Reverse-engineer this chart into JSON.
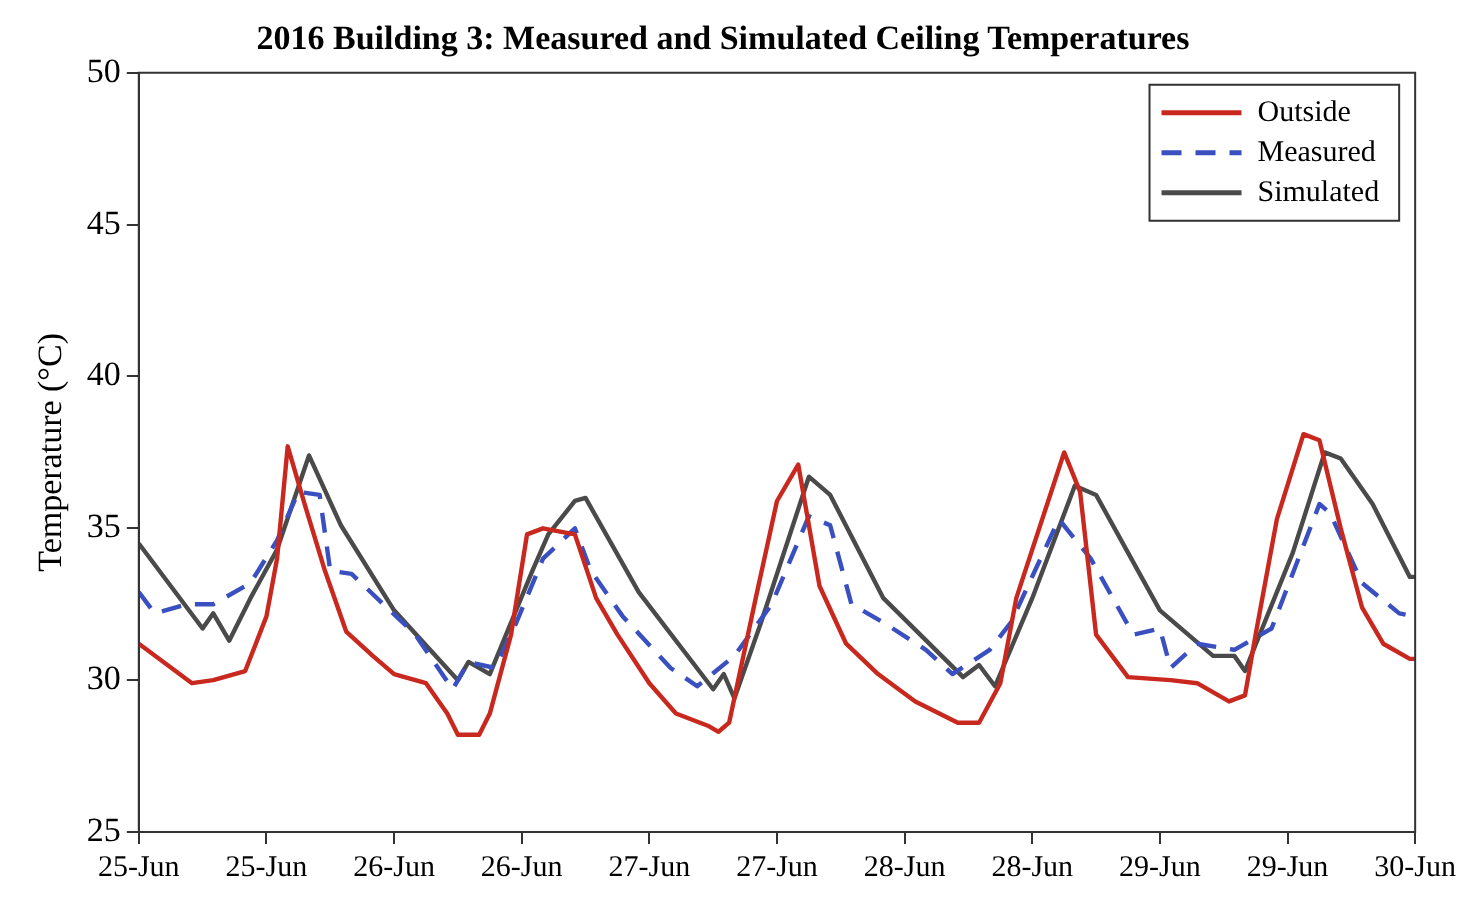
{
  "chart_data": {
    "type": "line",
    "title": "2016 Building 3: Measured and Simulated Ceiling Temperatures",
    "ylabel": "Temperature (°C)",
    "xlim": [
      "2016-06-25T00:00",
      "2016-06-30T00:00"
    ],
    "xticks": [
      {
        "value": "2016-06-25T00:00",
        "label": "25-Jun"
      },
      {
        "value": "2016-06-25T12:00",
        "label": "25-Jun"
      },
      {
        "value": "2016-06-26T00:00",
        "label": "26-Jun"
      },
      {
        "value": "2016-06-26T12:00",
        "label": "26-Jun"
      },
      {
        "value": "2016-06-27T00:00",
        "label": "27-Jun"
      },
      {
        "value": "2016-06-27T12:00",
        "label": "27-Jun"
      },
      {
        "value": "2016-06-28T00:00",
        "label": "28-Jun"
      },
      {
        "value": "2016-06-28T12:00",
        "label": "28-Jun"
      },
      {
        "value": "2016-06-29T00:00",
        "label": "29-Jun"
      },
      {
        "value": "2016-06-29T12:00",
        "label": "29-Jun"
      },
      {
        "value": "2016-06-30T00:00",
        "label": "30-Jun"
      }
    ],
    "ylim": [
      25,
      50
    ],
    "yticks": [
      25,
      30,
      35,
      40,
      45,
      50
    ],
    "grid": false,
    "legend": "top right",
    "marker": "none",
    "series": [
      {
        "name": "Outside",
        "color": "#c8281e",
        "line_style": "solid",
        "x": [
          "2016-06-25T00:00",
          "2016-06-25T05:00",
          "2016-06-25T07:00",
          "2016-06-25T10:00",
          "2016-06-25T12:00",
          "2016-06-25T13:00",
          "2016-06-25T14:00",
          "2016-06-25T15:30",
          "2016-06-25T17:30",
          "2016-06-25T19:30",
          "2016-06-25T22:00",
          "2016-06-26T00:00",
          "2016-06-26T03:00",
          "2016-06-26T05:00",
          "2016-06-26T06:00",
          "2016-06-26T08:00",
          "2016-06-26T09:00",
          "2016-06-26T11:00",
          "2016-06-26T12:30",
          "2016-06-26T14:00",
          "2016-06-26T17:00",
          "2016-06-26T19:00",
          "2016-06-26T21:00",
          "2016-06-27T00:00",
          "2016-06-27T02:30",
          "2016-06-27T05:30",
          "2016-06-27T06:30",
          "2016-06-27T07:30",
          "2016-06-27T10:00",
          "2016-06-27T12:00",
          "2016-06-27T14:00",
          "2016-06-27T16:00",
          "2016-06-27T18:30",
          "2016-06-27T21:30",
          "2016-06-28T01:00",
          "2016-06-28T05:00",
          "2016-06-28T07:00",
          "2016-06-28T09:00",
          "2016-06-28T10:30",
          "2016-06-28T13:30",
          "2016-06-28T15:00",
          "2016-06-28T16:30",
          "2016-06-28T18:00",
          "2016-06-28T21:00",
          "2016-06-29T01:00",
          "2016-06-29T03:30",
          "2016-06-29T06:30",
          "2016-06-29T08:00",
          "2016-06-29T09:00",
          "2016-06-29T11:00",
          "2016-06-29T13:30",
          "2016-06-29T15:00",
          "2016-06-29T17:00",
          "2016-06-29T19:00",
          "2016-06-29T21:00",
          "2016-06-29T23:30",
          "2016-06-30T00:00"
        ],
        "values": [
          31.2,
          29.9,
          30.0,
          30.3,
          32.1,
          34.0,
          37.7,
          35.9,
          33.6,
          31.6,
          30.8,
          30.2,
          29.9,
          28.9,
          28.2,
          28.2,
          28.9,
          31.5,
          34.8,
          35.0,
          34.8,
          32.7,
          31.5,
          29.9,
          28.9,
          28.5,
          28.3,
          28.6,
          32.7,
          35.9,
          37.1,
          33.1,
          31.2,
          30.2,
          29.3,
          28.6,
          28.6,
          29.9,
          32.7,
          35.9,
          37.5,
          36.2,
          31.5,
          30.1,
          30.0,
          29.9,
          29.3,
          29.5,
          31.5,
          35.3,
          38.1,
          37.9,
          35.0,
          32.4,
          31.2,
          30.7,
          30.7
        ]
      },
      {
        "name": "Measured",
        "color": "#3a4fc0",
        "line_style": "dashed",
        "x": [
          "2016-06-25T00:00",
          "2016-06-25T01:30",
          "2016-06-25T04:30",
          "2016-06-25T07:00",
          "2016-06-25T10:30",
          "2016-06-25T13:00",
          "2016-06-25T15:00",
          "2016-06-25T17:00",
          "2016-06-25T18:00",
          "2016-06-25T20:00",
          "2016-06-25T23:00",
          "2016-06-26T02:00",
          "2016-06-26T05:30",
          "2016-06-26T07:00",
          "2016-06-26T09:30",
          "2016-06-26T11:30",
          "2016-06-26T14:00",
          "2016-06-26T17:00",
          "2016-06-26T18:30",
          "2016-06-26T21:30",
          "2016-06-27T02:00",
          "2016-06-27T04:30",
          "2016-06-27T08:00",
          "2016-06-27T11:30",
          "2016-06-27T15:00",
          "2016-06-27T17:00",
          "2016-06-27T19:00",
          "2016-06-27T22:00",
          "2016-06-28T02:00",
          "2016-06-28T04:30",
          "2016-06-28T08:00",
          "2016-06-28T10:00",
          "2016-06-28T14:30",
          "2016-06-28T17:30",
          "2016-06-28T21:30",
          "2016-06-29T00:00",
          "2016-06-29T01:00",
          "2016-06-29T03:30",
          "2016-06-29T07:00",
          "2016-06-29T10:30",
          "2016-06-29T15:00",
          "2016-06-29T16:00",
          "2016-06-29T19:00",
          "2016-06-29T22:30",
          "2016-06-30T00:00"
        ],
        "values": [
          32.9,
          32.2,
          32.5,
          32.5,
          33.2,
          34.6,
          36.2,
          36.1,
          33.6,
          33.5,
          32.5,
          31.5,
          29.7,
          30.6,
          30.4,
          31.9,
          34.0,
          35.0,
          33.6,
          32.1,
          30.4,
          29.8,
          30.8,
          32.5,
          35.4,
          35.1,
          32.5,
          31.9,
          31.0,
          30.2,
          31.0,
          31.9,
          35.3,
          34.0,
          31.5,
          31.7,
          30.4,
          31.2,
          31.0,
          31.7,
          35.8,
          35.5,
          33.2,
          32.2,
          32.1
        ]
      },
      {
        "name": "Simulated",
        "color": "#4a4a4a",
        "line_style": "solid",
        "x": [
          "2016-06-25T00:00",
          "2016-06-25T06:00",
          "2016-06-25T07:00",
          "2016-06-25T08:30",
          "2016-06-25T10:30",
          "2016-06-25T13:00",
          "2016-06-25T16:00",
          "2016-06-25T19:00",
          "2016-06-26T00:00",
          "2016-06-26T06:00",
          "2016-06-26T07:00",
          "2016-06-26T09:00",
          "2016-06-26T13:00",
          "2016-06-26T14:30",
          "2016-06-26T17:00",
          "2016-06-26T18:00",
          "2016-06-26T23:00",
          "2016-06-27T06:00",
          "2016-06-27T07:00",
          "2016-06-27T08:00",
          "2016-06-27T10:30",
          "2016-06-27T15:00",
          "2016-06-27T17:00",
          "2016-06-27T22:00",
          "2016-06-28T05:30",
          "2016-06-28T07:00",
          "2016-06-28T08:30",
          "2016-06-28T12:00",
          "2016-06-28T16:00",
          "2016-06-28T18:00",
          "2016-06-29T00:00",
          "2016-06-29T05:00",
          "2016-06-29T07:00",
          "2016-06-29T08:00",
          "2016-06-29T12:30",
          "2016-06-29T15:30",
          "2016-06-29T17:00",
          "2016-06-29T20:00",
          "2016-06-29T23:30",
          "2016-06-30T00:00"
        ],
        "values": [
          34.5,
          31.7,
          32.2,
          31.3,
          32.7,
          34.3,
          37.4,
          35.1,
          32.3,
          30.0,
          30.6,
          30.2,
          33.6,
          34.8,
          35.9,
          36.0,
          32.9,
          29.7,
          30.2,
          29.4,
          31.9,
          36.7,
          36.1,
          32.7,
          30.1,
          30.5,
          29.8,
          32.7,
          36.4,
          36.1,
          32.3,
          30.8,
          30.8,
          30.3,
          34.2,
          37.5,
          37.3,
          35.8,
          33.4,
          33.4
        ]
      }
    ]
  }
}
